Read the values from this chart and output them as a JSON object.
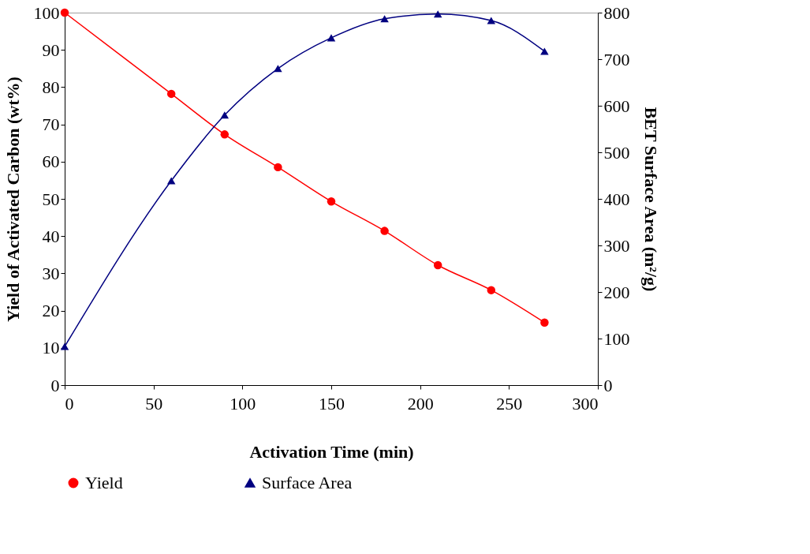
{
  "chart_data": {
    "type": "line",
    "xlabel": "Activation Time (min)",
    "ylabel": "Yield of Activated Carbon (wt%)",
    "y2label": "BET Surface Area (m²/g)",
    "x": [
      0,
      60,
      90,
      120,
      150,
      180,
      210,
      240,
      270
    ],
    "series": [
      {
        "name": "Yield",
        "color": "#ff0000",
        "marker": "circle",
        "values": [
          100,
          78.2,
          67.3,
          58.5,
          49.3,
          41.4,
          32.2,
          25.5,
          16.8
        ]
      },
      {
        "name": "Surface Area",
        "color": "#000080",
        "marker": "triangle",
        "axis": "y2",
        "values": [
          83,
          439,
          580,
          680,
          746,
          787,
          797,
          783,
          717
        ]
      }
    ],
    "xlim": [
      0,
      300
    ],
    "xticks": [
      0,
      50,
      100,
      150,
      200,
      250,
      300
    ],
    "ylim": [
      0,
      100
    ],
    "yticks": [
      0,
      10,
      20,
      30,
      40,
      50,
      60,
      70,
      80,
      90,
      100
    ],
    "y2lim": [
      0,
      800
    ],
    "y2ticks": [
      0,
      100,
      200,
      300,
      400,
      500,
      600,
      700,
      800
    ],
    "grid": false,
    "legend": "bottom",
    "line_style": "solid"
  }
}
